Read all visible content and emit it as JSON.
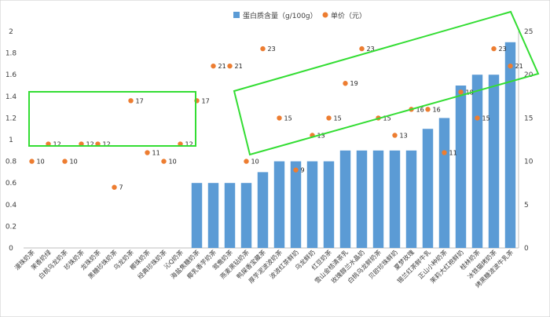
{
  "chart_data": {
    "type": "bar",
    "categories": [
      "漫珠奶茶",
      "茉香奶绿",
      "白桃乌龙奶茶",
      "珍珠奶茶",
      "龙珠奶茶",
      "黑糖珍珠奶茶",
      "乌龙奶茶",
      "椰珠奶茶",
      "经典珍珠奶茶",
      "沁Q奶茶",
      "海盐焦糖奶茶",
      "椰乳香芋奶茶",
      "鸳鸯奶茶",
      "燕麦黑钻奶茶",
      "鸭屎香宝藏茶",
      "厚芋泥波波奶茶",
      "波波红茶鲜奶",
      "乌龙鲜奶",
      "红豆奶茶",
      "雪山金桔清茶乳",
      "玫瑰醇兰水晶奶",
      "白桃乌龙鲜奶茶",
      "贝欧珍珠鲜奶",
      "夏梦玫瑰",
      "锡兰红茶鲜牛乳",
      "正山小种奶茶",
      "茉莉大红袍鲜奶",
      "桂林奶茶",
      "冰铁猫烤奶茶",
      "烤黑糖波波牛乳茶"
    ],
    "series": [
      {
        "name": "蛋白质含量（g/100g）",
        "kind": "bar",
        "axis": "left",
        "color": "#5b9bd5",
        "values": [
          0,
          0,
          0,
          0,
          0,
          0,
          0,
          0,
          0,
          0,
          0.6,
          0.6,
          0.6,
          0.6,
          0.7,
          0.8,
          0.8,
          0.8,
          0.8,
          0.9,
          0.9,
          0.9,
          0.9,
          0.9,
          1.1,
          1.2,
          1.5,
          1.6,
          1.6,
          1.9
        ]
      },
      {
        "name": "单价（元）",
        "kind": "scatter",
        "axis": "right",
        "color": "#ed7d31",
        "values": [
          10,
          12,
          10,
          12,
          12,
          7,
          17,
          11,
          10,
          12,
          17,
          21,
          21,
          10,
          23,
          15,
          9,
          13,
          15,
          19,
          23,
          15,
          13,
          16,
          16,
          11,
          18,
          15,
          23,
          21
        ]
      }
    ],
    "y_left": {
      "ylim": [
        0,
        2
      ],
      "ticks": [
        "0",
        "0.2",
        "0.4",
        "0.6",
        "0.8",
        "1",
        "1.2",
        "1.4",
        "1.6",
        "1.8",
        "2"
      ]
    },
    "y_right": {
      "ylim": [
        0,
        25
      ],
      "ticks": [
        "0",
        "5",
        "10",
        "15",
        "20",
        "25"
      ]
    },
    "legend_position": "top-center",
    "grid": false,
    "annotation_color": "#33dd33"
  }
}
